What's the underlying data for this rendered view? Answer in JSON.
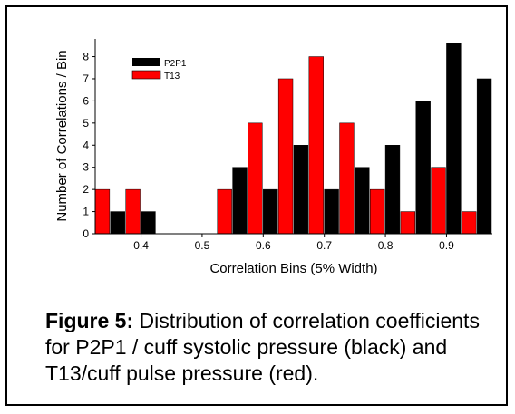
{
  "chart_data": {
    "type": "bar",
    "title": "",
    "xlabel": "Correlation Bins (5% Width)",
    "ylabel": "Number of Correlations / Bin",
    "xlim": [
      0.325,
      0.975
    ],
    "ylim": [
      0,
      8.8
    ],
    "x_ticks": [
      "0.4",
      "0.5",
      "0.6",
      "0.7",
      "0.8",
      "0.9"
    ],
    "y_ticks": [
      "0",
      "1",
      "2",
      "3",
      "4",
      "5",
      "6",
      "7",
      "8"
    ],
    "bin_centers": [
      0.35,
      0.4,
      0.45,
      0.5,
      0.55,
      0.6,
      0.65,
      0.7,
      0.75,
      0.8,
      0.85,
      0.9,
      0.95
    ],
    "series": [
      {
        "name": "T13",
        "color": "#ff0000",
        "values": [
          2,
          2,
          0,
          0,
          2,
          5,
          7,
          8,
          5,
          2,
          1,
          3,
          1
        ]
      },
      {
        "name": "P2P1",
        "color": "#000000",
        "values": [
          1,
          1,
          0,
          0,
          3,
          2,
          4,
          2,
          3,
          4,
          6,
          8.6,
          7
        ]
      }
    ],
    "legend_position": "top-left"
  },
  "caption": {
    "label": "Figure 5:",
    "text": " Distribution of correlation coefficients for P2P1 / cuff systolic pressure (black) and T13/cuff pulse pressure (red)."
  }
}
